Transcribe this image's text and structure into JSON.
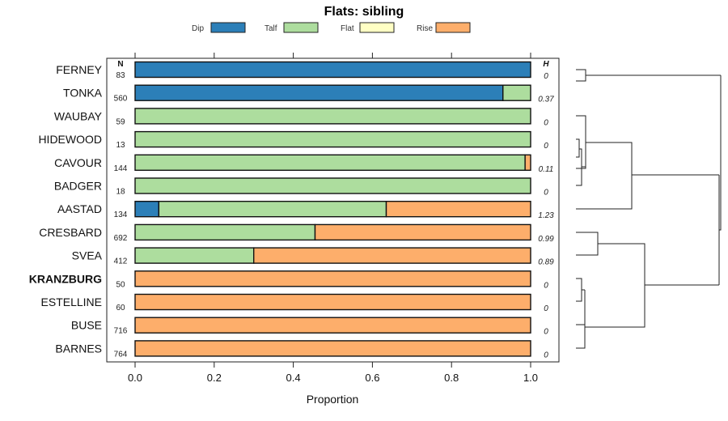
{
  "chart_data": {
    "type": "bar",
    "orientation": "horizontal",
    "stacked": true,
    "title": "Flats: sibling",
    "xlabel": "Proportion",
    "xlim": [
      0,
      1
    ],
    "xticks": [
      "0.0",
      "0.2",
      "0.4",
      "0.6",
      "0.8",
      "1.0"
    ],
    "n_header": "N",
    "h_header": "H",
    "legend_position": "top",
    "series": [
      {
        "name": "Dip",
        "color": "#2c7fb8"
      },
      {
        "name": "Talf",
        "color": "#addd9e"
      },
      {
        "name": "Flat",
        "color": "#ffffc4"
      },
      {
        "name": "Rise",
        "color": "#fdae6b"
      }
    ],
    "rows": [
      {
        "label": "FERNEY",
        "n": "83",
        "h": "0",
        "bold": false,
        "values": [
          1.0,
          0,
          0,
          0
        ]
      },
      {
        "label": "TONKA",
        "n": "560",
        "h": "0.37",
        "bold": false,
        "values": [
          0.93,
          0.07,
          0,
          0
        ]
      },
      {
        "label": "WAUBAY",
        "n": "59",
        "h": "0",
        "bold": false,
        "values": [
          0,
          1.0,
          0,
          0
        ]
      },
      {
        "label": "HIDEWOOD",
        "n": "13",
        "h": "0",
        "bold": false,
        "values": [
          0,
          1.0,
          0,
          0
        ]
      },
      {
        "label": "CAVOUR",
        "n": "144",
        "h": "0.11",
        "bold": false,
        "values": [
          0,
          0.986,
          0,
          0.014
        ]
      },
      {
        "label": "BADGER",
        "n": "18",
        "h": "0",
        "bold": false,
        "values": [
          0,
          1.0,
          0,
          0
        ]
      },
      {
        "label": "AASTAD",
        "n": "134",
        "h": "1.23",
        "bold": false,
        "values": [
          0.06,
          0.575,
          0,
          0.365
        ]
      },
      {
        "label": "CRESBARD",
        "n": "692",
        "h": "0.99",
        "bold": false,
        "values": [
          0,
          0.455,
          0,
          0.545
        ]
      },
      {
        "label": "SVEA",
        "n": "412",
        "h": "0.89",
        "bold": false,
        "values": [
          0,
          0.3,
          0,
          0.7
        ]
      },
      {
        "label": "KRANZBURG",
        "n": "50",
        "h": "0",
        "bold": true,
        "values": [
          0,
          0,
          0,
          1.0
        ]
      },
      {
        "label": "ESTELLINE",
        "n": "60",
        "h": "0",
        "bold": false,
        "values": [
          0,
          0,
          0,
          1.0
        ]
      },
      {
        "label": "BUSE",
        "n": "716",
        "h": "0",
        "bold": false,
        "values": [
          0,
          0,
          0,
          1.0
        ]
      },
      {
        "label": "BARNES",
        "n": "764",
        "h": "0",
        "bold": false,
        "values": [
          0,
          0,
          0,
          1.0
        ]
      }
    ]
  }
}
